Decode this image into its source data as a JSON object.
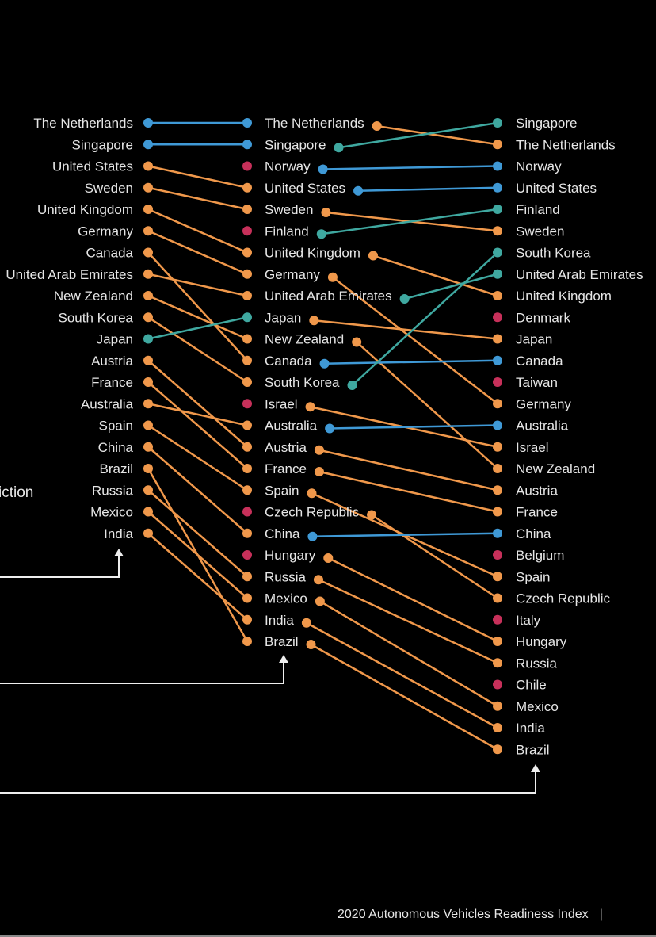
{
  "chart_data": {
    "type": "line",
    "subtype": "slope",
    "partial_label": "iction",
    "colors": {
      "same": "#3f99d6",
      "up": "#3fa8a0",
      "down": "#f0984b",
      "new": "#c7305a"
    },
    "columns": [
      [
        "The Netherlands",
        "Singapore",
        "United States",
        "Sweden",
        "United Kingdom",
        "Germany",
        "Canada",
        "United Arab Emirates",
        "New Zealand",
        "South Korea",
        "Japan",
        "Austria",
        "France",
        "Australia",
        "Spain",
        "China",
        "Brazil",
        "Russia",
        "Mexico",
        "India"
      ],
      [
        "The Netherlands",
        "Singapore",
        "Norway",
        "United States",
        "Sweden",
        "Finland",
        "United Kingdom",
        "Germany",
        "United Arab Emirates",
        "Japan",
        "New Zealand",
        "Canada",
        "South Korea",
        "Israel",
        "Australia",
        "Austria",
        "France",
        "Spain",
        "Czech Republic",
        "China",
        "Hungary",
        "Russia",
        "Mexico",
        "India",
        "Brazil"
      ],
      [
        "Singapore",
        "The Netherlands",
        "Norway",
        "United States",
        "Finland",
        "Sweden",
        "South Korea",
        "United Arab Emirates",
        "United Kingdom",
        "Denmark",
        "Japan",
        "Canada",
        "Taiwan",
        "Germany",
        "Australia",
        "Israel",
        "New Zealand",
        "Austria",
        "France",
        "China",
        "Belgium",
        "Spain",
        "Czech Republic",
        "Italy",
        "Hungary",
        "Russia",
        "Chile",
        "Mexico",
        "India",
        "Brazil"
      ]
    ]
  },
  "footer": {
    "title": "2020 Autonomous Vehicles Readiness Index",
    "separator": "|"
  }
}
